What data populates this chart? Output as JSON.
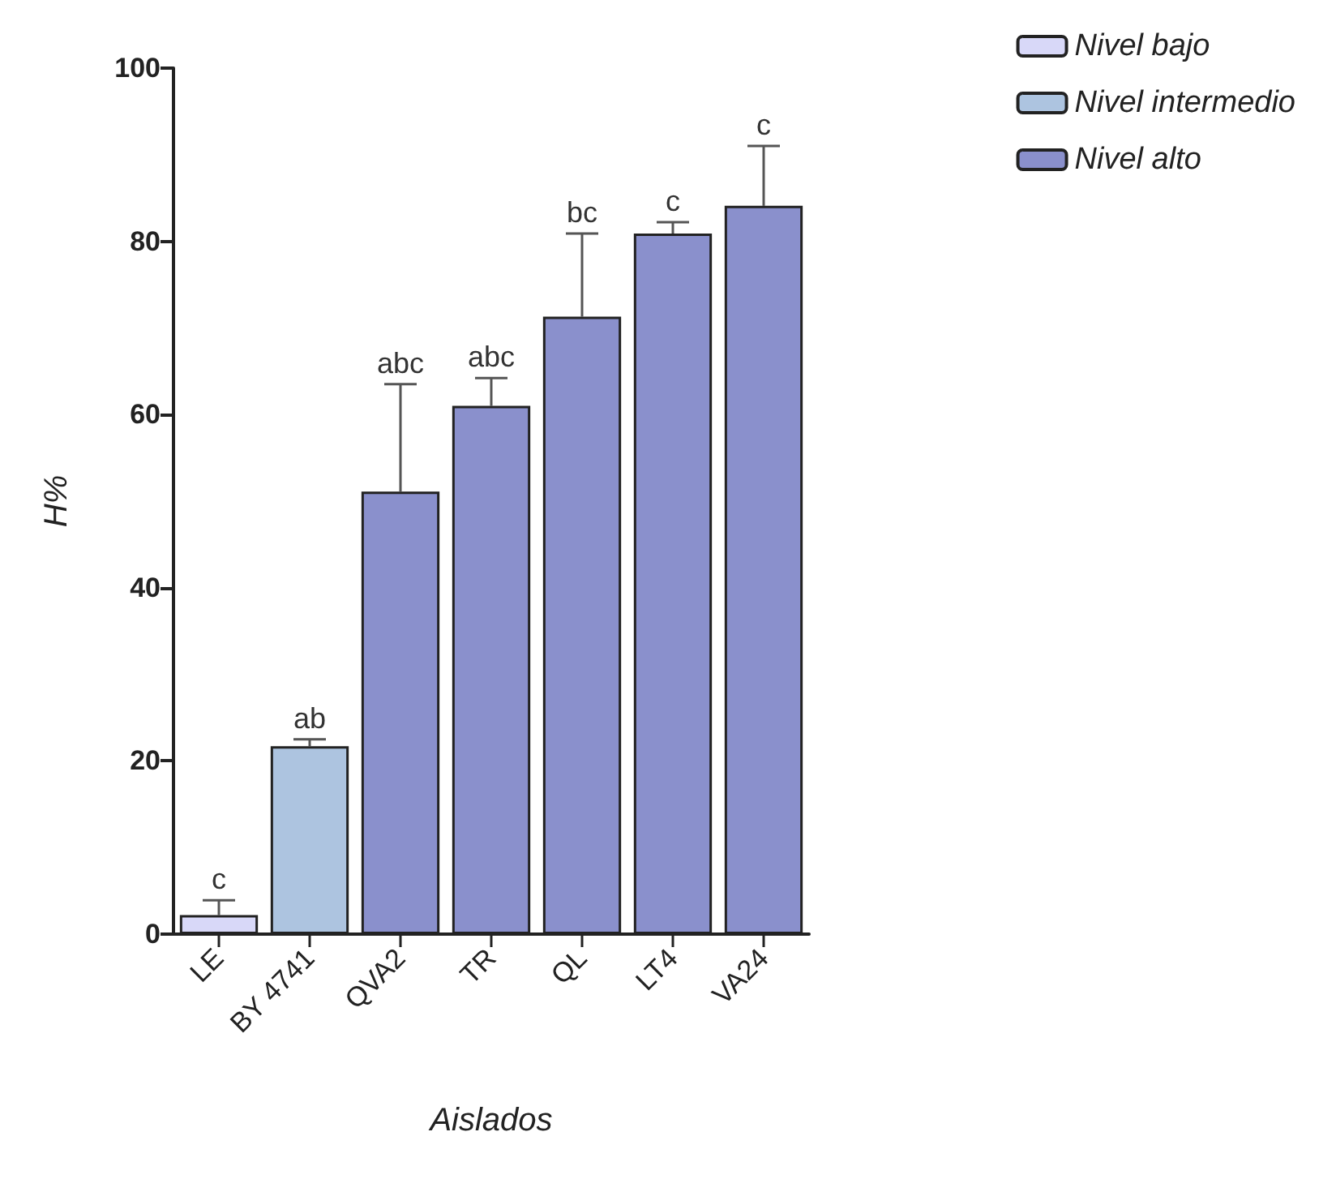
{
  "chart_data": {
    "type": "bar",
    "xlabel": "Aislados",
    "ylabel": "H%",
    "categories": [
      "LE",
      "BY 4741",
      "QVA2",
      "TR",
      "QL",
      "LT4",
      "VA24"
    ],
    "series": [
      {
        "name": "Nivel bajo",
        "color": "#d8d8f8",
        "values": [
          2.2,
          null,
          null,
          null,
          null,
          null,
          null
        ],
        "errors": [
          [
            2.2,
            3.9
          ],
          null,
          null,
          null,
          null,
          null,
          null
        ]
      },
      {
        "name": "Nivel intermedio",
        "color": "#adc4e0",
        "values": [
          null,
          21.7,
          null,
          null,
          null,
          null,
          null
        ],
        "errors": [
          null,
          [
            21.7,
            22.5
          ],
          null,
          null,
          null,
          null,
          null
        ]
      },
      {
        "name": "Nivel alto",
        "color": "#8a90cc",
        "values": [
          null,
          null,
          51.1,
          61.0,
          71.3,
          80.9,
          84.1
        ],
        "errors": [
          null,
          null,
          [
            51.1,
            63.5
          ],
          [
            61.0,
            64.2
          ],
          [
            71.3,
            80.9
          ],
          [
            80.9,
            82.2
          ],
          [
            84.1,
            91.0
          ]
        ]
      }
    ],
    "ylim": [
      0,
      100
    ],
    "yticks": [
      0,
      20,
      40,
      60,
      80,
      100
    ],
    "grid": false,
    "legend": "top right",
    "annotations": [
      {
        "text": "c",
        "x": "LE",
        "y": 3.9
      },
      {
        "text": "ab",
        "x": "BY 4741",
        "y": 22.5
      },
      {
        "text": "abc",
        "x": "QVA2",
        "y": 63.5
      },
      {
        "text": "abc",
        "x": "TR",
        "y": 64.2
      },
      {
        "text": "bc",
        "x": "QL",
        "y": 80.9
      },
      {
        "text": "c",
        "x": "LT4",
        "y": 82.2
      },
      {
        "text": "c",
        "x": "VA24",
        "y": 91.0
      }
    ]
  }
}
